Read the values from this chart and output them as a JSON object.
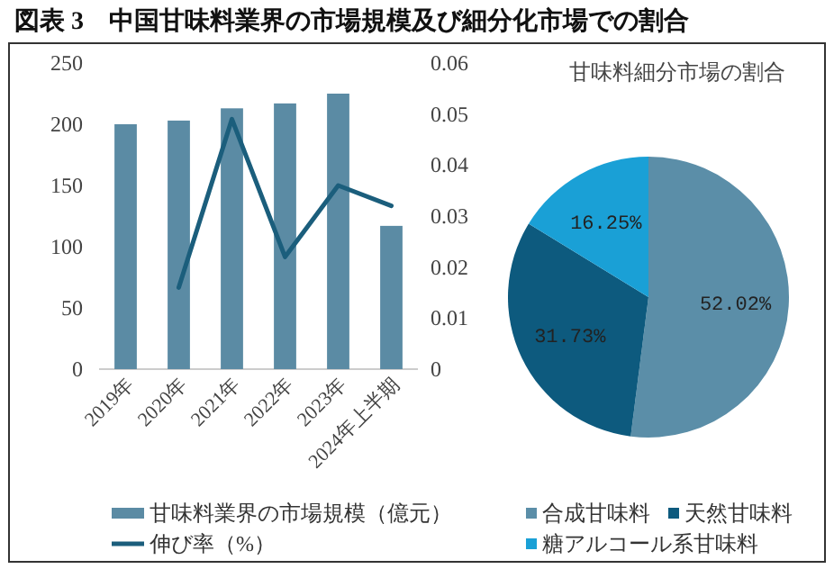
{
  "chart_data": [
    {
      "type": "bar",
      "title": "図表 3　中国甘味料業界の市場規模及び細分化市場での割合",
      "categories": [
        "2019年",
        "2020年",
        "2021年",
        "2022年",
        "2023年",
        "2024年上半期"
      ],
      "series": [
        {
          "name": "甘味料業界の市場規模（億元）",
          "color": "#5b8ba4",
          "values": [
            200,
            203,
            213,
            217,
            225,
            117
          ]
        },
        {
          "name": "伸び率（%）",
          "type": "line",
          "axis": "y2",
          "color": "#1b5e7c",
          "values": [
            null,
            0.016,
            0.049,
            0.022,
            0.036,
            0.032
          ]
        }
      ],
      "ylim": [
        0,
        250
      ],
      "yticks": [
        0,
        50,
        100,
        150,
        200,
        250
      ],
      "y2lim": [
        0,
        0.06
      ],
      "y2ticks": [
        0,
        0.01,
        0.02,
        0.03,
        0.04,
        0.05,
        0.06
      ],
      "legend": "bottom"
    },
    {
      "type": "pie",
      "title": "甘味料細分市場の割合",
      "categories": [
        "合成甘味料",
        "天然甘味料",
        "糖アルコール系甘味料"
      ],
      "values": [
        52.02,
        31.73,
        16.25
      ],
      "colors": [
        "#5b8ea8",
        "#0d5a7e",
        "#1aa0d6"
      ],
      "value_labels": [
        "52.02%",
        "31.73%",
        "16.25%"
      ],
      "legend": "bottom"
    }
  ]
}
